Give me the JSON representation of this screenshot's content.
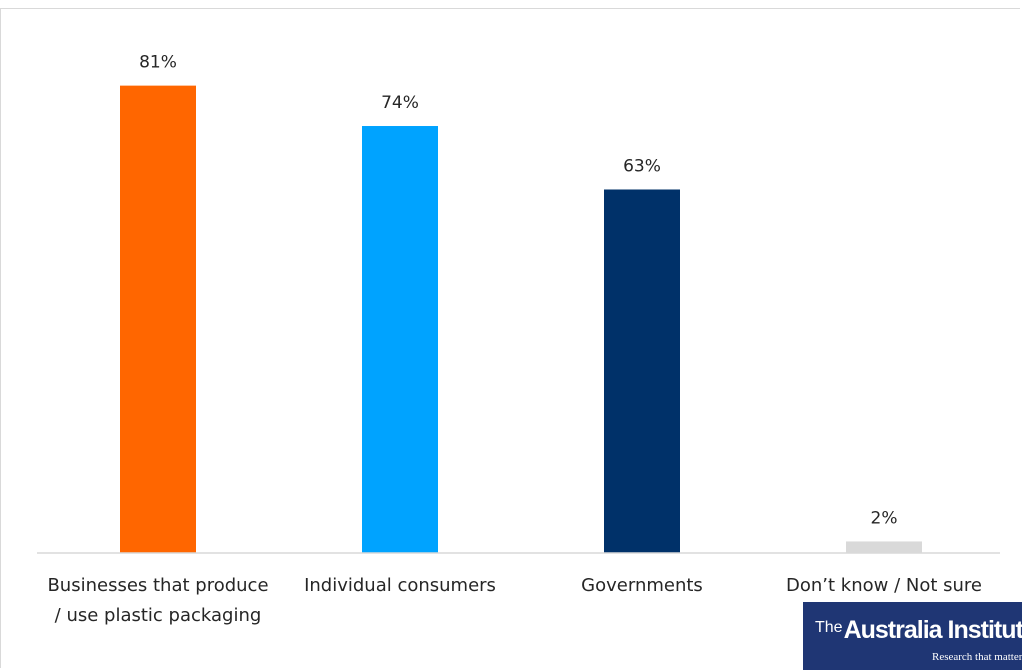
{
  "chart_data": {
    "type": "bar",
    "categories": [
      [
        "Businesses that produce",
        "/ use plastic packaging"
      ],
      [
        "Individual consumers"
      ],
      [
        "Governments"
      ],
      [
        "Don’t know / Not sure"
      ]
    ],
    "values": [
      81,
      74,
      63,
      2
    ],
    "data_labels": [
      "81%",
      "74%",
      "63%",
      "2%"
    ],
    "bar_colors": [
      "#ff6600",
      "#00a3ff",
      "#003169",
      "#d9d9d9"
    ],
    "ylim": [
      0,
      90
    ],
    "grid": false,
    "legend": "none"
  },
  "logo": {
    "the": "The",
    "name": "Australia Institute",
    "tagline": "Research that matters"
  }
}
